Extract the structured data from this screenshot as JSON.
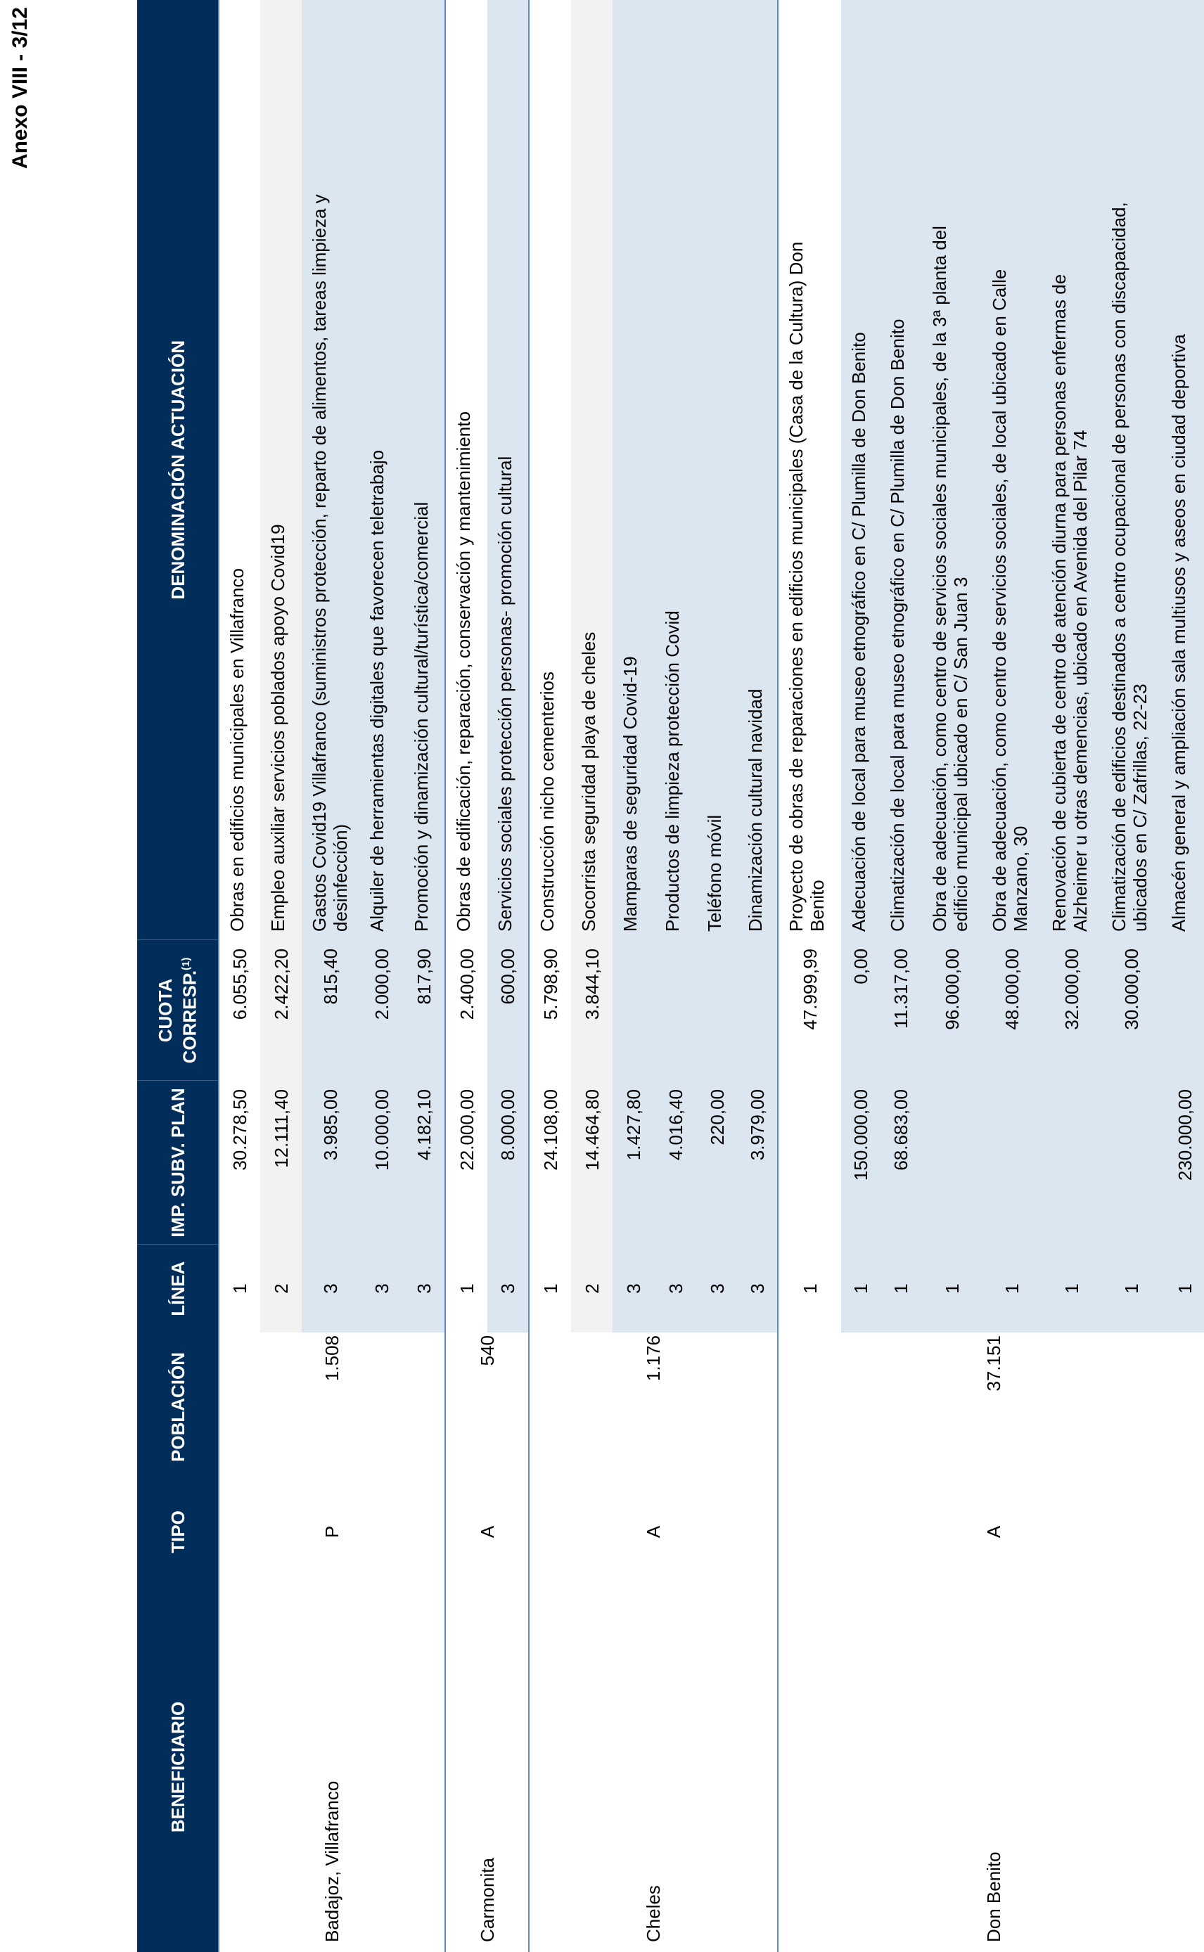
{
  "page_label": "Anexo VIII - 3/12",
  "header": {
    "beneficiario": "BENEFICIARIO",
    "tipo": "TIPO",
    "poblacion": "POBLACIÓN",
    "linea": "LÍNEA",
    "imp": "IMP. SUBV. PLAN",
    "cuota": "CUOTA CORRESP.",
    "cuota_note": "(1)",
    "denominacion": "DENOMINACIÓN ACTUACIÓN"
  },
  "colors": {
    "header_bg": "#012d5b",
    "row_grey": "#f2f2f2",
    "row_blue": "#dce6f1",
    "border": "#5b8bc9"
  },
  "groups": [
    {
      "beneficiario": "Badajoz, Villafranco",
      "tipo": "P",
      "poblacion": "1.508",
      "rows": [
        {
          "linea": "1",
          "imp": "30.278,50",
          "cuota": "6.055,50",
          "denominacion": "Obras en edificios municipales en Villafranco"
        },
        {
          "linea": "2",
          "imp": "12.111,40",
          "cuota": "2.422,20",
          "denominacion": "Empleo auxiliar servicios poblados apoyo Covid19"
        },
        {
          "linea": "3",
          "imp": "3.985,00",
          "cuota": "815,40",
          "denominacion": "Gastos Covid19 Villafranco (suministros protección, reparto de alimentos, tareas limpieza y\ndesinfección)"
        },
        {
          "linea": "3",
          "imp": "10.000,00",
          "cuota": "2.000,00",
          "denominacion": "Alquiler de herramientas digitales que favorecen teletrabajo"
        },
        {
          "linea": "3",
          "imp": "4.182,10",
          "cuota": "817,90",
          "denominacion": "Promoción y dinamización cultural/turística/comercial"
        }
      ]
    },
    {
      "beneficiario": "Carmonita",
      "tipo": "A",
      "poblacion": "540",
      "rows": [
        {
          "linea": "1",
          "imp": "22.000,00",
          "cuota": "2.400,00",
          "denominacion": "Obras de edificación, reparación, conservación y mantenimiento"
        },
        {
          "linea": "3",
          "imp": "8.000,00",
          "cuota": "600,00",
          "denominacion": "Servicios sociales protección personas- promoción cultural"
        }
      ]
    },
    {
      "beneficiario": "Cheles",
      "tipo": "A",
      "poblacion": "1.176",
      "rows": [
        {
          "linea": "1",
          "imp": "24.108,00",
          "cuota": "5.798,90",
          "denominacion": "Construcción nicho cementerios"
        },
        {
          "linea": "2",
          "imp": "14.464,80",
          "cuota": "3.844,10",
          "denominacion": "Socorrista seguridad playa de cheles"
        },
        {
          "linea": "3",
          "imp": "1.427,80",
          "cuota": "",
          "denominacion": "Mamparas de seguridad Covid-19"
        },
        {
          "linea": "3",
          "imp": "4.016,40",
          "cuota": "",
          "denominacion": "Productos de limpieza protección Covid"
        },
        {
          "linea": "3",
          "imp": "220,00",
          "cuota": "",
          "denominacion": "Teléfono móvil"
        },
        {
          "linea": "3",
          "imp": "3.979,00",
          "cuota": "",
          "denominacion": "Dinamización cultural navidad"
        }
      ]
    },
    {
      "beneficiario": "Don Benito",
      "tipo": "A",
      "poblacion": "37.151",
      "rows": [
        {
          "linea": "1",
          "imp": "",
          "cuota": "47.999,99",
          "denominacion": "Proyecto de obras de reparaciones en edificios municipales (Casa de la Cultura) Don\nBenito"
        },
        {
          "linea": "1",
          "imp": "150.000,00",
          "cuota": "0,00",
          "denominacion": "Adecuación de local para museo etnográfico en C/ Plumilla de Don Benito"
        },
        {
          "linea": "1",
          "imp": "68.683,00",
          "cuota": "11.317,00",
          "denominacion": "Climatización de local para museo etnográfico en C/ Plumilla de Don Benito"
        },
        {
          "linea": "1",
          "imp": "",
          "cuota": "96.000,00",
          "denominacion": "Obra de adecuación, como centro de servicios sociales municipales, de la 3ª planta del\nedificio municipal ubicado en C/ San Juan 3"
        },
        {
          "linea": "1",
          "imp": "",
          "cuota": "48.000,00",
          "denominacion": "Obra de adecuación, como centro de servicios sociales, de local ubicado en Calle\nManzano, 30"
        },
        {
          "linea": "1",
          "imp": "",
          "cuota": "32.000,00",
          "denominacion": "Renovación de cubierta de centro de atención diurna para personas enfermas de\nAlzheimer u otras demencias, ubicado en Avenida del Pilar 74"
        },
        {
          "linea": "1",
          "imp": "",
          "cuota": "30.000,00",
          "denominacion": "Climatización de edificios destinados a centro ocupacional de personas con discapacidad,\nubicados en C/ Zafrillas, 22-23"
        },
        {
          "linea": "1",
          "imp": "230.000,00",
          "cuota": "",
          "denominacion": "Almacén general y ampliación sala multiusos y aseos en ciudad deportiva"
        }
      ]
    }
  ]
}
